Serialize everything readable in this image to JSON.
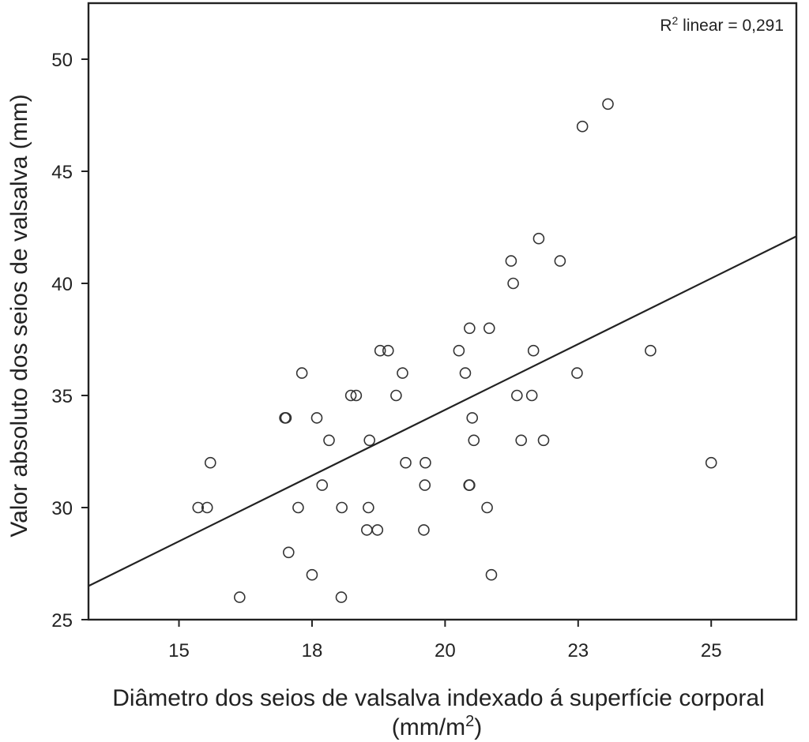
{
  "chart_data": {
    "type": "scatter",
    "annotation": {
      "prefix": "R",
      "sup": "2",
      "suffix": " linear = 0,291"
    },
    "xlabel": {
      "line1": "Diâmetro dos seios de valsalva indexado á superfície corporal",
      "line2_prefix": "(mm/m",
      "line2_sup": "2",
      "line2_suffix": ")"
    },
    "ylabel": "Valor absoluto dos seios de valsalva (mm)",
    "xlim": [
      13.3,
      26.6
    ],
    "ylim": [
      25,
      52.5
    ],
    "x_ticks": [
      {
        "value": 15,
        "label": "15"
      },
      {
        "value": 17.5,
        "label": "18"
      },
      {
        "value": 20,
        "label": "20"
      },
      {
        "value": 22.5,
        "label": "23"
      },
      {
        "value": 25,
        "label": "25"
      }
    ],
    "y_ticks": [
      {
        "value": 25,
        "label": "25"
      },
      {
        "value": 30,
        "label": "30"
      },
      {
        "value": 35,
        "label": "35"
      },
      {
        "value": 40,
        "label": "40"
      },
      {
        "value": 45,
        "label": "45"
      },
      {
        "value": 50,
        "label": "50"
      }
    ],
    "fit_line": {
      "x": [
        13.3,
        26.6
      ],
      "y": [
        26.5,
        42.1
      ]
    },
    "grid": false,
    "points": [
      {
        "x": 15.36,
        "y": 30
      },
      {
        "x": 15.53,
        "y": 30
      },
      {
        "x": 15.59,
        "y": 32
      },
      {
        "x": 16.14,
        "y": 26
      },
      {
        "x": 16.99,
        "y": 34
      },
      {
        "x": 17.01,
        "y": 34
      },
      {
        "x": 17.06,
        "y": 28
      },
      {
        "x": 17.24,
        "y": 30
      },
      {
        "x": 17.31,
        "y": 36
      },
      {
        "x": 17.5,
        "y": 27
      },
      {
        "x": 17.59,
        "y": 34
      },
      {
        "x": 17.69,
        "y": 31
      },
      {
        "x": 17.82,
        "y": 33
      },
      {
        "x": 18.05,
        "y": 26
      },
      {
        "x": 18.06,
        "y": 30
      },
      {
        "x": 18.23,
        "y": 35
      },
      {
        "x": 18.33,
        "y": 35
      },
      {
        "x": 18.53,
        "y": 29
      },
      {
        "x": 18.56,
        "y": 30
      },
      {
        "x": 18.58,
        "y": 33
      },
      {
        "x": 18.73,
        "y": 29
      },
      {
        "x": 18.78,
        "y": 37
      },
      {
        "x": 18.93,
        "y": 37
      },
      {
        "x": 19.08,
        "y": 35
      },
      {
        "x": 19.2,
        "y": 36
      },
      {
        "x": 19.26,
        "y": 32
      },
      {
        "x": 19.6,
        "y": 29
      },
      {
        "x": 19.62,
        "y": 31
      },
      {
        "x": 19.63,
        "y": 32
      },
      {
        "x": 20.26,
        "y": 37
      },
      {
        "x": 20.38,
        "y": 36
      },
      {
        "x": 20.45,
        "y": 31
      },
      {
        "x": 20.46,
        "y": 31
      },
      {
        "x": 20.46,
        "y": 38
      },
      {
        "x": 20.51,
        "y": 34
      },
      {
        "x": 20.54,
        "y": 33
      },
      {
        "x": 20.79,
        "y": 30
      },
      {
        "x": 20.83,
        "y": 38
      },
      {
        "x": 20.87,
        "y": 27
      },
      {
        "x": 21.24,
        "y": 41
      },
      {
        "x": 21.28,
        "y": 40
      },
      {
        "x": 21.35,
        "y": 35
      },
      {
        "x": 21.43,
        "y": 33
      },
      {
        "x": 21.63,
        "y": 35
      },
      {
        "x": 21.66,
        "y": 37
      },
      {
        "x": 21.76,
        "y": 42
      },
      {
        "x": 21.85,
        "y": 33
      },
      {
        "x": 22.16,
        "y": 41
      },
      {
        "x": 22.48,
        "y": 36
      },
      {
        "x": 22.58,
        "y": 47
      },
      {
        "x": 23.06,
        "y": 48
      },
      {
        "x": 23.86,
        "y": 37
      },
      {
        "x": 25.0,
        "y": 32
      }
    ]
  }
}
